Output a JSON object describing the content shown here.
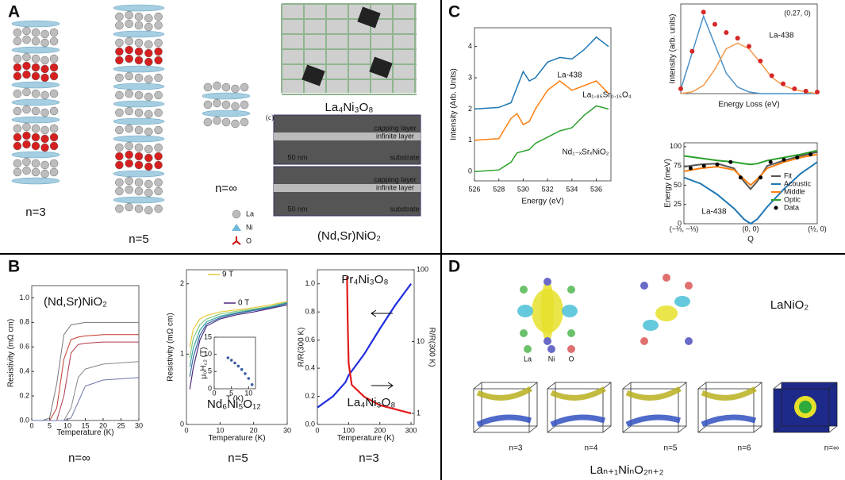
{
  "panel_a": {
    "label": "A",
    "structures": [
      "n=3",
      "n=5",
      "n=∞"
    ],
    "photo_label": "La₄Ni₃O₈",
    "micrograph": {
      "tag": "(c)",
      "layers": [
        "capping layer",
        "infinite layer",
        "substrate"
      ],
      "scale": "50 nm"
    },
    "film_label": "(Nd,Sr)NiO₂",
    "legend": [
      "La",
      "Ni",
      "O"
    ]
  },
  "panel_b": {
    "label": "B",
    "bottom_labels": [
      "n=∞",
      "n=5",
      "n=3"
    ],
    "charts": [
      {
        "type": "line",
        "title": "(Nd,Sr)NiO₂",
        "x_label": "Temperature (K)",
        "y_label": "Resistivity (mΩ cm)",
        "xlim": [
          0,
          30
        ],
        "ylim": [
          0,
          1.1
        ],
        "xticks": [
          0,
          5,
          10,
          15,
          20,
          25,
          30
        ],
        "yticks": [
          {
            "value": 0,
            "label": "0.0"
          },
          0.2,
          0.4,
          0.6,
          0.8,
          {
            "value": 1,
            "label": "1.0"
          }
        ],
        "x": [
          0,
          3,
          5,
          7,
          9,
          11,
          13,
          15,
          20,
          30
        ],
        "series": [
          {
            "color": "#777",
            "values": [
              0,
              0,
              0.02,
              0.3,
              0.7,
              0.78,
              0.79,
              0.8,
              0.8,
              0.8
            ]
          },
          {
            "color": "#c0392b",
            "values": [
              0,
              0,
              0,
              0.1,
              0.5,
              0.66,
              0.68,
              0.69,
              0.7,
              0.7
            ]
          },
          {
            "color": "#b03a4a",
            "values": [
              0,
              0,
              0,
              0,
              0.2,
              0.55,
              0.62,
              0.63,
              0.64,
              0.64
            ]
          },
          {
            "color": "#888",
            "values": [
              0,
              0,
              0,
              0,
              0,
              0.1,
              0.35,
              0.42,
              0.46,
              0.48
            ]
          },
          {
            "color": "#6b74a8",
            "values": [
              0,
              0,
              0,
              0,
              0,
              0.02,
              0.15,
              0.28,
              0.33,
              0.35
            ]
          }
        ]
      },
      {
        "type": "line",
        "annotation": "Nd₆Ni₅O₁₂",
        "x_label": "Temperature (K)",
        "y_label": "Resistivity (mΩ cm)",
        "xlim": [
          0,
          30
        ],
        "ylim": [
          0,
          2.2
        ],
        "xticks": [
          0,
          10,
          20,
          30
        ],
        "yticks": [
          0,
          1,
          2
        ],
        "x": [
          1,
          2,
          4,
          6,
          10,
          15,
          20,
          25,
          30
        ],
        "series": [
          {
            "name": "9 T",
            "color": "#e8c93a",
            "values": [
              1.1,
              1.35,
              1.5,
              1.55,
              1.6,
              1.63,
              1.66,
              1.7,
              1.75
            ]
          },
          {
            "color": "#7fc97f",
            "values": [
              0.95,
              1.22,
              1.42,
              1.5,
              1.57,
              1.61,
              1.64,
              1.68,
              1.74
            ]
          },
          {
            "color": "#3aa6a0",
            "values": [
              0.82,
              1.08,
              1.34,
              1.46,
              1.54,
              1.59,
              1.63,
              1.67,
              1.73
            ]
          },
          {
            "color": "#3b6ea5",
            "values": [
              0.68,
              0.95,
              1.27,
              1.43,
              1.52,
              1.58,
              1.62,
              1.66,
              1.72
            ]
          },
          {
            "name": "0 T",
            "color": "#4b2b7f",
            "values": [
              0.5,
              0.8,
              1.2,
              1.4,
              1.5,
              1.56,
              1.6,
              1.65,
              1.7
            ]
          }
        ],
        "inset": {
          "type": "scatter",
          "x_label": "T (K)",
          "y_label": "μ₀H꜀₂ (T)",
          "xlim": [
            0,
            12
          ],
          "ylim": [
            0,
            15
          ],
          "xticks": [
            0,
            5,
            10
          ],
          "yticks": [
            0,
            5,
            10,
            15
          ],
          "x": [
            4,
            5,
            6,
            7,
            8,
            9,
            10,
            11
          ],
          "series": [
            {
              "color": "#3b5ea5",
              "marker": "dot",
              "values": [
                9,
                8.3,
                7.5,
                6.6,
                5.6,
                4.4,
                3.0,
                1.2
              ]
            }
          ]
        }
      },
      {
        "type": "line",
        "x_label": "Temperature (K)",
        "y_label": "R/R(300 K)",
        "y2_label": "R/R(300 K)",
        "xlim": [
          0,
          310
        ],
        "ylim": [
          0,
          1.1
        ],
        "xticks": [
          0,
          100,
          200,
          300
        ],
        "yticks": [
          {
            "value": 0,
            "label": "0.0"
          },
          0.2,
          0.4,
          0.6,
          0.8,
          {
            "value": 1,
            "label": "1.0"
          }
        ],
        "y2lim": [
          0.7,
          100
        ],
        "y2log": true,
        "y2ticks": [
          1,
          10,
          100
        ],
        "series": [
          {
            "name": "Pr₄Ni₃O₈",
            "color": "#1f2de0",
            "x": [
              0,
              50,
              90,
              100,
              150,
              200,
              250,
              300
            ],
            "values": [
              0.12,
              0.2,
              0.3,
              0.35,
              0.5,
              0.68,
              0.85,
              1.0
            ]
          },
          {
            "name": "La₄Ni₃O₈",
            "color": "#e21b1b",
            "axis": "y2",
            "x": [
              95,
              97,
              100,
              110,
              150,
              200,
              300
            ],
            "values": [
              80,
              20,
              5,
              2.5,
              1.7,
              1.3,
              1.0
            ]
          }
        ]
      }
    ]
  },
  "panel_c": {
    "label": "C",
    "xas": {
      "type": "line",
      "x_label": "Energy (eV)",
      "y_label": "Intensity (Arb. Units)",
      "xlim": [
        526,
        537.2
      ],
      "ylim": [
        -0.3,
        4.6
      ],
      "xticks": [
        526,
        528,
        530,
        532,
        534,
        536
      ],
      "yticks": [
        0,
        1,
        2,
        3,
        4
      ],
      "x": [
        526,
        528,
        529,
        529.5,
        530,
        530.5,
        531,
        532,
        533,
        534,
        535,
        536,
        537
      ],
      "series": [
        {
          "name": "La-438",
          "color": "#1f77b4",
          "values": [
            2.0,
            2.05,
            2.2,
            2.7,
            3.2,
            2.9,
            3.0,
            3.5,
            3.65,
            3.6,
            3.9,
            4.3,
            4.0
          ]
        },
        {
          "name": "La₁.₈₅Sr₀.₁₅O₄",
          "color": "#ff7f0e",
          "values": [
            1.0,
            1.05,
            1.7,
            1.85,
            1.5,
            1.6,
            2.0,
            2.6,
            2.9,
            2.6,
            2.75,
            2.9,
            2.5
          ]
        },
        {
          "name": "Nd₁₋ₓSrₓNiO₂",
          "color": "#2ca02c",
          "values": [
            0,
            0.05,
            0.3,
            0.6,
            0.65,
            0.7,
            0.9,
            1.1,
            1.3,
            1.4,
            1.8,
            2.1,
            2.0
          ]
        }
      ]
    },
    "rixs": {
      "type": "line",
      "annotation": "(0.27, 0)",
      "label": "La-438",
      "x_label": "Energy Loss (eV)",
      "y_label": "Intensity (arb. units)",
      "x": [
        0,
        1,
        2,
        3,
        4,
        5,
        6,
        7,
        8,
        9,
        10,
        11,
        12
      ],
      "series": [
        {
          "color": "#4a90c8",
          "values": [
            0.05,
            0.5,
            0.95,
            0.6,
            0.25,
            0.08,
            0.02,
            0,
            0,
            0,
            0,
            0,
            0
          ]
        },
        {
          "color": "#f39a4c",
          "values": [
            0,
            0.02,
            0.1,
            0.3,
            0.55,
            0.62,
            0.55,
            0.38,
            0.2,
            0.1,
            0.05,
            0.02,
            0
          ]
        },
        {
          "color": "#d62728",
          "marker": "dot",
          "values": [
            0.06,
            0.52,
            1.0,
            0.85,
            0.75,
            0.68,
            0.58,
            0.4,
            0.22,
            0.12,
            0.06,
            0.03,
            0.02
          ]
        }
      ]
    },
    "dispersion": {
      "type": "line",
      "label": "La-438",
      "x_label": "Q",
      "y_label": "Energy (meV)",
      "categories": [
        "(−⅓, −⅓)",
        "(0, 0)",
        "(½, 0)"
      ],
      "ylim": [
        0,
        105
      ],
      "yticks": [
        0,
        25,
        50,
        75,
        100
      ],
      "x": [
        0,
        0.25,
        0.5,
        0.75,
        0.9,
        1,
        1.1,
        1.25,
        1.5,
        1.75,
        2
      ],
      "series": [
        {
          "name": "Fit",
          "color": "#555",
          "values": [
            74,
            77,
            78,
            72,
            55,
            45,
            55,
            75,
            82,
            88,
            93
          ]
        },
        {
          "name": "Acoustic",
          "color": "#1f77b4",
          "values": [
            60,
            52,
            38,
            20,
            6,
            0,
            6,
            22,
            45,
            65,
            80
          ]
        },
        {
          "name": "Middle",
          "color": "#ff7f0e",
          "values": [
            68,
            72,
            74,
            70,
            58,
            50,
            58,
            72,
            80,
            86,
            90
          ]
        },
        {
          "name": "Optic",
          "color": "#2ca02c",
          "values": [
            88,
            85,
            82,
            80,
            78,
            77,
            78,
            82,
            86,
            90,
            95
          ]
        },
        {
          "name": "Data",
          "color": "#000",
          "marker": "dot",
          "x": [
            0.1,
            0.3,
            0.5,
            0.7,
            0.85,
            1.15,
            1.3,
            1.5,
            1.7,
            1.9
          ],
          "values": [
            72,
            75,
            77,
            80,
            60,
            60,
            80,
            83,
            86,
            90
          ]
        }
      ]
    }
  },
  "panel_d": {
    "label": "D",
    "compound": "LaNiO₂",
    "legend": [
      "La",
      "Ni",
      "O"
    ],
    "fermi_surfaces": [
      "n=3",
      "n=4",
      "n=5",
      "n=6",
      "n=∞"
    ],
    "formula": "Laₙ₊₁NiₙO₂ₙ₊₂"
  }
}
